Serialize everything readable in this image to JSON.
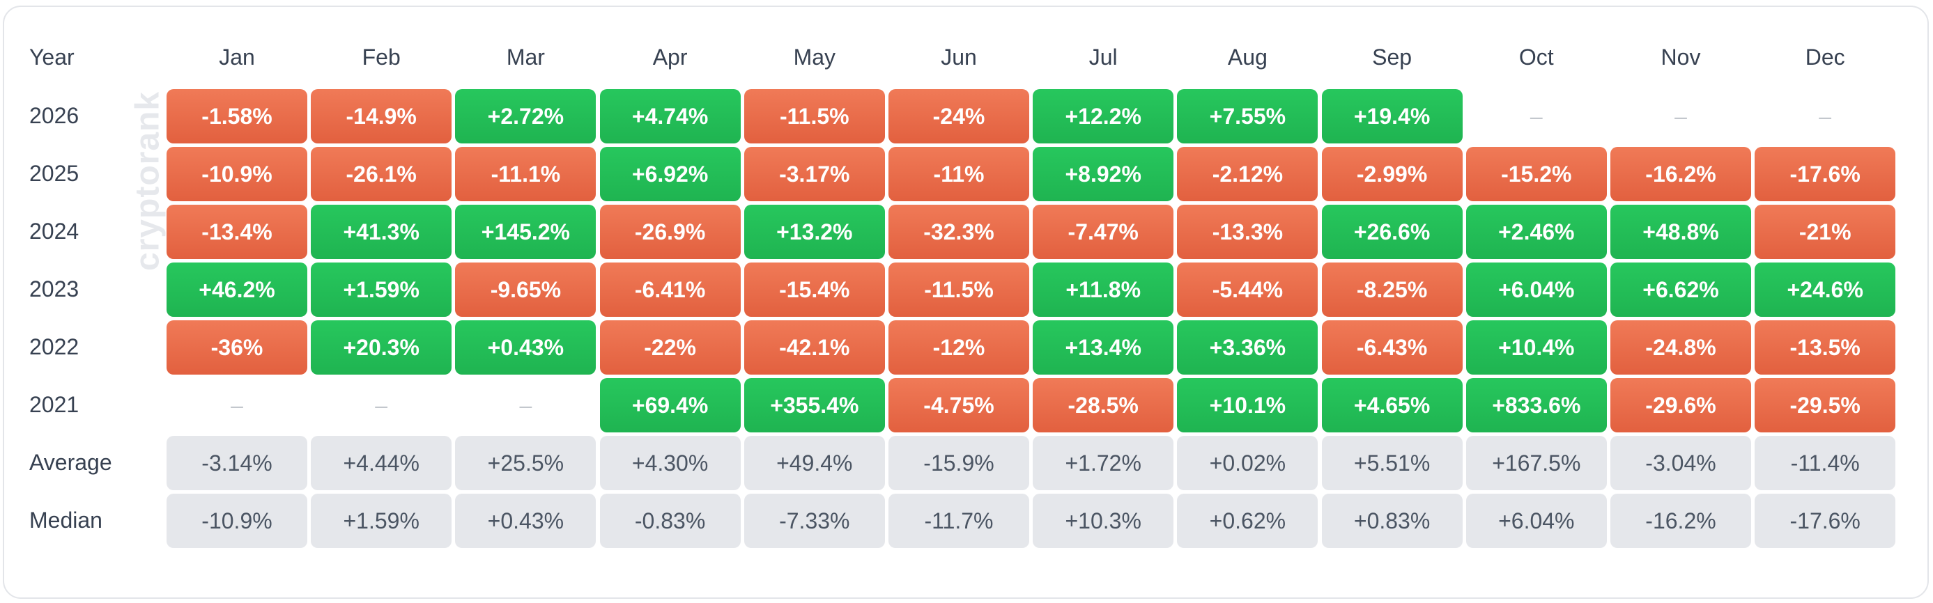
{
  "chart_data": {
    "type": "table",
    "header_label": "Year",
    "watermark": "cryptorank",
    "months": [
      "Jan",
      "Feb",
      "Mar",
      "Apr",
      "May",
      "Jun",
      "Jul",
      "Aug",
      "Sep",
      "Oct",
      "Nov",
      "Dec"
    ],
    "rows": [
      {
        "label": "2026",
        "values": [
          "-1.58%",
          "-14.9%",
          "+2.72%",
          "+4.74%",
          "-11.5%",
          "-24%",
          "+12.2%",
          "+7.55%",
          "+19.4%",
          "–",
          "–",
          "–"
        ]
      },
      {
        "label": "2025",
        "values": [
          "-10.9%",
          "-26.1%",
          "-11.1%",
          "+6.92%",
          "-3.17%",
          "-11%",
          "+8.92%",
          "-2.12%",
          "-2.99%",
          "-15.2%",
          "-16.2%",
          "-17.6%"
        ]
      },
      {
        "label": "2024",
        "values": [
          "-13.4%",
          "+41.3%",
          "+145.2%",
          "-26.9%",
          "+13.2%",
          "-32.3%",
          "-7.47%",
          "-13.3%",
          "+26.6%",
          "+2.46%",
          "+48.8%",
          "-21%"
        ]
      },
      {
        "label": "2023",
        "values": [
          "+46.2%",
          "+1.59%",
          "-9.65%",
          "-6.41%",
          "-15.4%",
          "-11.5%",
          "+11.8%",
          "-5.44%",
          "-8.25%",
          "+6.04%",
          "+6.62%",
          "+24.6%"
        ]
      },
      {
        "label": "2022",
        "values": [
          "-36%",
          "+20.3%",
          "+0.43%",
          "-22%",
          "-42.1%",
          "-12%",
          "+13.4%",
          "+3.36%",
          "-6.43%",
          "+10.4%",
          "-24.8%",
          "-13.5%"
        ]
      },
      {
        "label": "2021",
        "values": [
          "–",
          "–",
          "–",
          "+69.4%",
          "+355.4%",
          "-4.75%",
          "-28.5%",
          "+10.1%",
          "+4.65%",
          "+833.6%",
          "-29.6%",
          "-29.5%"
        ]
      }
    ],
    "stats": [
      {
        "label": "Average",
        "values": [
          "-3.14%",
          "+4.44%",
          "+25.5%",
          "+4.30%",
          "+49.4%",
          "-15.9%",
          "+1.72%",
          "+0.02%",
          "+5.51%",
          "+167.5%",
          "-3.04%",
          "-11.4%"
        ]
      },
      {
        "label": "Median",
        "values": [
          "-10.9%",
          "+1.59%",
          "+0.43%",
          "-0.83%",
          "-7.33%",
          "-11.7%",
          "+10.3%",
          "+0.62%",
          "+0.83%",
          "+6.04%",
          "-16.2%",
          "-17.6%"
        ]
      }
    ],
    "colors": {
      "positive": "#22c55e",
      "negative": "#e8694a",
      "stat": "#e5e7eb",
      "empty": "#c3c7cd"
    }
  }
}
